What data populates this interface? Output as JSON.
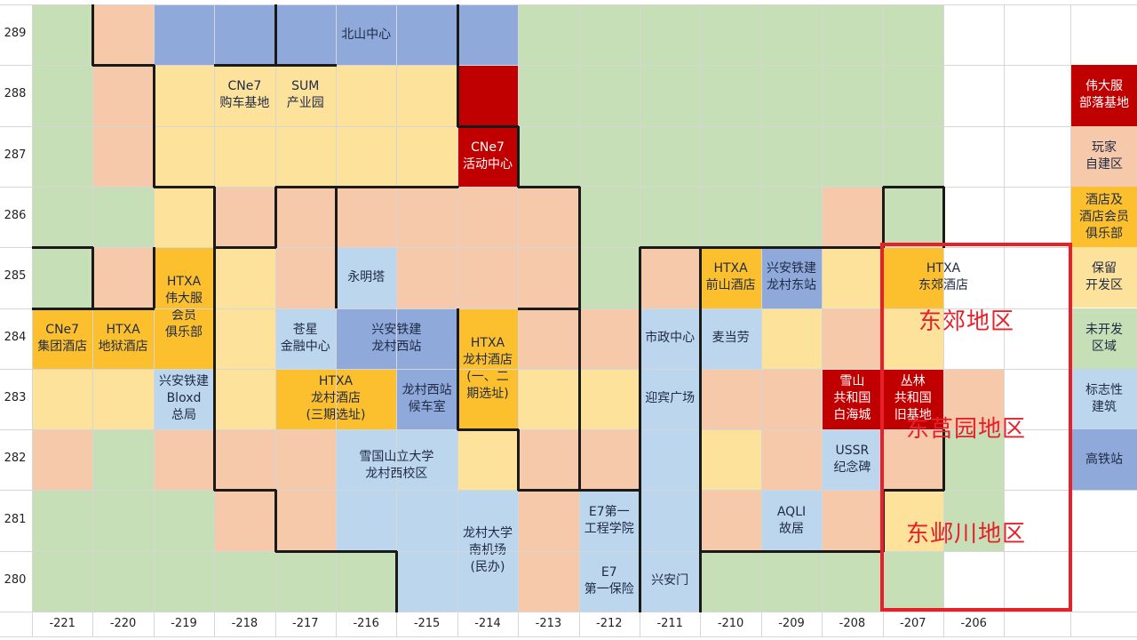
{
  "colors": {
    "undeveloped": "#c7dfb6",
    "player": "#f7c9ab",
    "hotel": "#fcc02e",
    "reserve": "#fde29c",
    "landmark": "#bcd6ee",
    "rail": "#8fa9db",
    "base": "#c00000",
    "blank": "#ffffff",
    "highlight": "#e8202a"
  },
  "axes": {
    "x": [
      "-221",
      "-220",
      "-219",
      "-218",
      "-217",
      "-216",
      "-215",
      "-214",
      "-213",
      "-212",
      "-211",
      "-210",
      "-209",
      "-208",
      "-207",
      "-206"
    ],
    "y": [
      "289",
      "288",
      "287",
      "286",
      "285",
      "284",
      "283",
      "282",
      "281",
      "280"
    ]
  },
  "grid": [
    "GPRRRRRRGGGGGGGW",
    "GPYYYYYBGGGGGGGW",
    "GPYYYYYBGGGGGGGW",
    "GGYPPPPPPGGGGPGW",
    "GPHYPLPPPGPHRYHW",
    "HHHYLRRHPPLLYPYW",
    "YYLYHHRHYYLPPBBP",
    "PGPPPLLYPPLYPLPG",
    "GGGPPLLLPLLPLPYG",
    "GGGGGGLLPLLGGGGW"
  ],
  "blocks": [
    {
      "id": "beishan",
      "text": "北山中心",
      "tone": "dark"
    },
    {
      "id": "cne7-car",
      "text": "CNe7\n购车基地",
      "tone": "dark"
    },
    {
      "id": "sum",
      "text": "SUM\n产业园",
      "tone": "dark"
    },
    {
      "id": "cne7-activity",
      "text": "CNe7\n活动中心",
      "tone": "light"
    },
    {
      "id": "htxa-weida",
      "text": "HTXA\n伟大服\n会员\n俱乐部",
      "tone": "dark"
    },
    {
      "id": "yongmingta",
      "text": "永明塔",
      "tone": "dark"
    },
    {
      "id": "htxa-qianshan",
      "text": "HTXA\n前山酒店",
      "tone": "dark"
    },
    {
      "id": "xingan-longcun-east",
      "text": "兴安铁建\n龙村东站",
      "tone": "dark"
    },
    {
      "id": "htxa-dongjiao",
      "text": "HTXA\n东郊酒店",
      "tone": "dark"
    },
    {
      "id": "cne7-group",
      "text": "CNe7\n集团酒店",
      "tone": "dark"
    },
    {
      "id": "htxa-prison",
      "text": "HTXA\n地狱酒店",
      "tone": "dark"
    },
    {
      "id": "canxing",
      "text": "苍星\n金融中心",
      "tone": "dark"
    },
    {
      "id": "xingan-longcun-west",
      "text": "兴安铁建\n龙村西站",
      "tone": "dark"
    },
    {
      "id": "htxa-longcun-1",
      "text": "HTXA\n龙村酒店\n(一、二\n期选址)",
      "tone": "dark"
    },
    {
      "id": "shizheng",
      "text": "市政中心",
      "tone": "dark"
    },
    {
      "id": "mcdonalds",
      "text": "麦当劳",
      "tone": "dark"
    },
    {
      "id": "xingan-bloxd",
      "text": "兴安铁建\nBloxd\n总局",
      "tone": "dark"
    },
    {
      "id": "htxa-longcun-3",
      "text": "HTXA\n龙村酒店\n(三期选址)",
      "tone": "dark"
    },
    {
      "id": "waiting-room",
      "text": "龙村西站\n候车室",
      "tone": "dark"
    },
    {
      "id": "yingbin",
      "text": "迎宾广场",
      "tone": "dark"
    },
    {
      "id": "xueshan",
      "text": "雪山\n共和国\n白海城",
      "tone": "light"
    },
    {
      "id": "conglin",
      "text": "丛林\n共和国\n旧基地",
      "tone": "light"
    },
    {
      "id": "ussr",
      "text": "USSR\n纪念碑",
      "tone": "dark"
    },
    {
      "id": "university-west",
      "text": "雪国山立大学\n龙村西校区",
      "tone": "dark"
    },
    {
      "id": "e7-college",
      "text": "E7第一\n工程学院",
      "tone": "dark"
    },
    {
      "id": "aqli",
      "text": "AQLI\n故居",
      "tone": "dark"
    },
    {
      "id": "longcun-airport",
      "text": "龙村大学\n南机场\n(民办)",
      "tone": "dark"
    },
    {
      "id": "e7-insurance",
      "text": "E7\n第一保险",
      "tone": "dark"
    },
    {
      "id": "xinganmen",
      "text": "兴安门",
      "tone": "dark"
    }
  ],
  "legend": [
    {
      "text": "伟大服\n部落基地",
      "color": "#c00000",
      "tone": "light"
    },
    {
      "text": "玩家\n自建区",
      "color": "#f7c9ab",
      "tone": "dark"
    },
    {
      "text": "酒店及\n酒店会员\n俱乐部",
      "color": "#fcc02e",
      "tone": "dark"
    },
    {
      "text": "保留\n开发区",
      "color": "#fde29c",
      "tone": "dark"
    },
    {
      "text": "未开发\n区域",
      "color": "#c7dfb6",
      "tone": "dark"
    },
    {
      "text": "标志性\n建筑",
      "color": "#bcd6ee",
      "tone": "dark"
    },
    {
      "text": "高铁站",
      "color": "#8fa9db",
      "tone": "dark"
    }
  ],
  "regions": [
    {
      "id": "dongjiao",
      "text": "东郊地区"
    },
    {
      "id": "dongjuyuan",
      "text": "东莒园地区"
    },
    {
      "id": "dongbingchuan",
      "text": "东邺川地区"
    }
  ]
}
